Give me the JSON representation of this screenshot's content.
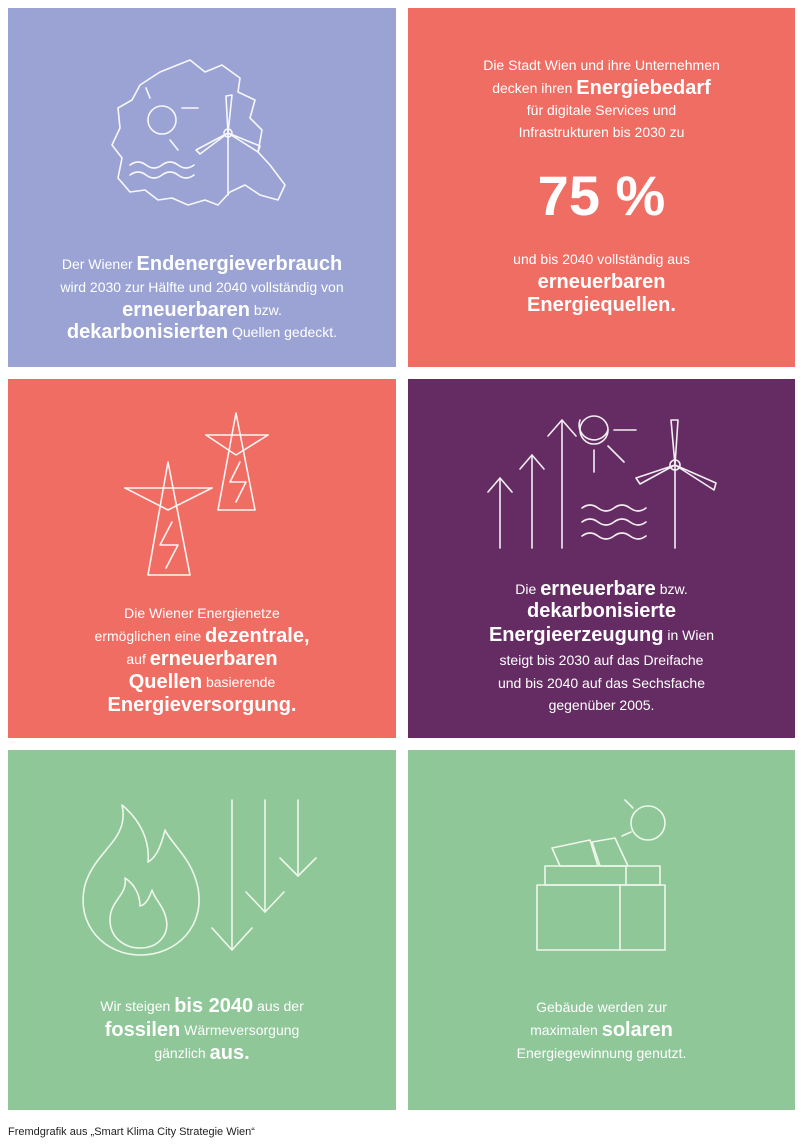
{
  "panels": [
    {
      "color": "#9aa3d3",
      "lines": [
        [
          {
            "t": "Der Wiener "
          },
          {
            "t": "Endenergieverbrauch",
            "b": true
          }
        ],
        [
          {
            "t": "wird 2030 zur Hälfte und 2040 vollständig von"
          }
        ],
        [
          {
            "t": "erneuerbaren",
            "b": true
          },
          {
            "t": " bzw."
          }
        ],
        [
          {
            "t": "dekarbonisierten",
            "b": true
          },
          {
            "t": " Quellen gedeckt."
          }
        ]
      ]
    },
    {
      "color": "#ef6d63",
      "lines": [
        [
          {
            "t": "Die Stadt Wien und ihre Unternehmen"
          }
        ],
        [
          {
            "t": "decken ihren "
          },
          {
            "t": "Energiebedarf",
            "b": true
          }
        ],
        [
          {
            "t": "für digitale Services und"
          }
        ],
        [
          {
            "t": "Infrastrukturen bis 2030 zu"
          }
        ],
        [
          {
            "t": "75 %",
            "b": true
          }
        ],
        [
          {
            "t": "und bis 2040 vollständig aus"
          }
        ],
        [
          {
            "t": "erneuerbaren",
            "b": true
          }
        ],
        [
          {
            "t": "Energiequellen.",
            "b": true
          }
        ]
      ]
    },
    {
      "color": "#ef6d63",
      "lines": [
        [
          {
            "t": "Die Wiener Energienetze"
          }
        ],
        [
          {
            "t": "ermöglichen eine "
          },
          {
            "t": "dezentrale,",
            "b": true
          }
        ],
        [
          {
            "t": "auf "
          },
          {
            "t": "erneuerbaren",
            "b": true
          }
        ],
        [
          {
            "t": "Quellen",
            "b": true
          },
          {
            "t": " basierende"
          }
        ],
        [
          {
            "t": "Energieversorgung.",
            "b": true
          }
        ]
      ]
    },
    {
      "color": "#652c63",
      "lines": [
        [
          {
            "t": "Die "
          },
          {
            "t": "erneuerbare",
            "b": true
          },
          {
            "t": " bzw."
          }
        ],
        [
          {
            "t": "dekarbonisierte",
            "b": true
          }
        ],
        [
          {
            "t": "Energieerzeugung",
            "b": true
          },
          {
            "t": " in Wien"
          }
        ],
        [
          {
            "t": "steigt bis 2030 auf das Dreifache"
          }
        ],
        [
          {
            "t": "und bis 2040 auf das Sechsfache"
          }
        ],
        [
          {
            "t": "gegenüber 2005."
          }
        ]
      ]
    },
    {
      "color": "#8fc799",
      "lines": [
        [
          {
            "t": "Wir steigen "
          },
          {
            "t": "bis 2040",
            "b": true
          },
          {
            "t": " aus der"
          }
        ],
        [
          {
            "t": "fossilen",
            "b": true
          },
          {
            "t": " Wärmeversorgung"
          }
        ],
        [
          {
            "t": "gänzlich "
          },
          {
            "t": "aus.",
            "b": true
          }
        ]
      ]
    },
    {
      "color": "#8fc799",
      "lines": [
        [
          {
            "t": "Gebäude werden zur"
          }
        ],
        [
          {
            "t": "maximalen "
          },
          {
            "t": "solaren",
            "b": true
          }
        ],
        [
          {
            "t": "Energiegewinnung genutzt."
          }
        ]
      ]
    }
  ],
  "caption": "Fremdgrafik aus „Smart Klima City Strategie Wien“"
}
